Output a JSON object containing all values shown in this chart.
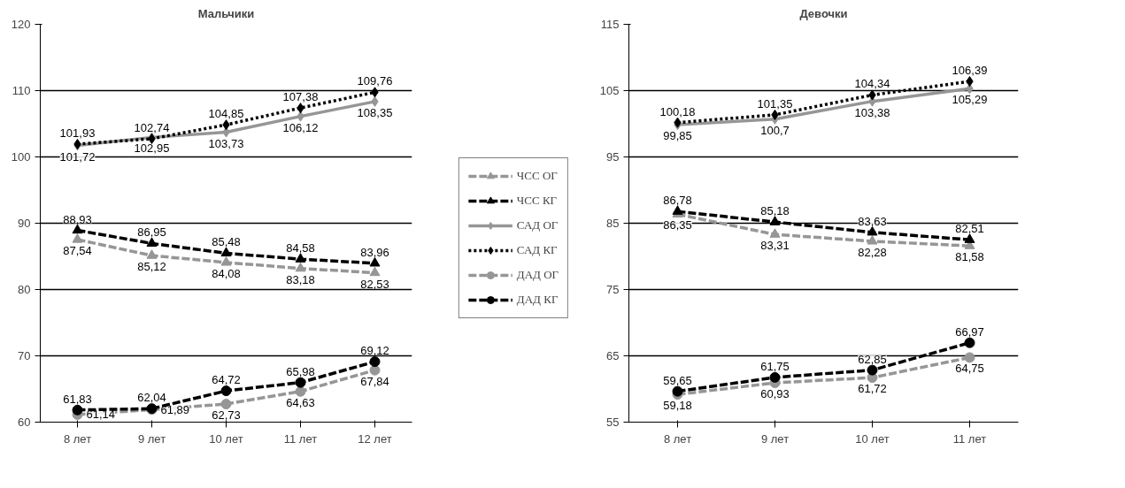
{
  "chart_data": [
    {
      "type": "line",
      "title": "Мальчики",
      "categories": [
        "8 лет",
        "9 лет",
        "10 лет",
        "11 лет",
        "12 лет"
      ],
      "ylim": [
        60,
        120
      ],
      "yticks": [
        60,
        70,
        80,
        90,
        100,
        110,
        120
      ],
      "grid": "y",
      "legend": "right",
      "series": [
        {
          "name": "ЧСС ОГ",
          "color": "#969696",
          "marker": "triangle",
          "line_style": "dashed",
          "values": [
            87.54,
            85.12,
            84.08,
            83.18,
            82.53
          ],
          "value_labels": [
            "87,54",
            "85,12",
            "84,08",
            "83,18",
            "82,53"
          ]
        },
        {
          "name": "ЧСС КГ",
          "color": "#000000",
          "marker": "triangle",
          "line_style": "dashed",
          "values": [
            88.93,
            86.95,
            85.48,
            84.58,
            83.96
          ],
          "value_labels": [
            "88,93",
            "86,95",
            "85,48",
            "84,58",
            "83,96"
          ]
        },
        {
          "name": "САД ОГ",
          "color": "#969696",
          "marker": "diamond",
          "line_style": "solid",
          "values": [
            101.72,
            102.95,
            103.73,
            106.12,
            108.35
          ],
          "value_labels": [
            "101,72",
            "102,95",
            "103,73",
            "106,12",
            "108,35"
          ]
        },
        {
          "name": "САД КГ",
          "color": "#000000",
          "marker": "diamond",
          "line_style": "dotted",
          "values": [
            101.93,
            102.74,
            104.85,
            107.38,
            109.76
          ],
          "value_labels": [
            "101,93",
            "102,74",
            "104,85",
            "107,38",
            "109,76"
          ]
        },
        {
          "name": "ДАД ОГ",
          "color": "#969696",
          "marker": "circle",
          "line_style": "dashed",
          "values": [
            61.14,
            61.89,
            62.73,
            64.63,
            67.84
          ],
          "value_labels": [
            "61,14",
            "61,89",
            "62,73",
            "64,63",
            "67,84"
          ]
        },
        {
          "name": "ДАД КГ",
          "color": "#000000",
          "marker": "circle",
          "line_style": "dashed",
          "values": [
            61.83,
            62.04,
            64.72,
            65.98,
            69.12
          ],
          "value_labels": [
            "61,83",
            "62,04",
            "64,72",
            "65,98",
            "69,12"
          ]
        }
      ]
    },
    {
      "type": "line",
      "title": "Девочки",
      "categories": [
        "8 лет",
        "9 лет",
        "10 лет",
        "11 лет"
      ],
      "ylim": [
        55,
        115
      ],
      "yticks": [
        55,
        65,
        75,
        85,
        95,
        105,
        115
      ],
      "grid": "y",
      "series": [
        {
          "color": "#969696",
          "marker": "triangle",
          "line_style": "dashed",
          "values": [
            86.35,
            83.31,
            82.28,
            81.58
          ],
          "value_labels": [
            "86,35",
            "83,31",
            "82,28",
            "81,58"
          ]
        },
        {
          "color": "#000000",
          "marker": "triangle",
          "line_style": "dashed",
          "values": [
            86.78,
            85.18,
            83.63,
            82.51
          ],
          "value_labels": [
            "86,78",
            "85,18",
            "83,63",
            "82,51"
          ]
        },
        {
          "color": "#969696",
          "marker": "diamond",
          "line_style": "solid",
          "values": [
            99.85,
            100.7,
            103.38,
            105.29
          ],
          "value_labels": [
            "99,85",
            "100,7",
            "103,38",
            "105,29"
          ]
        },
        {
          "color": "#000000",
          "marker": "diamond",
          "line_style": "dotted",
          "values": [
            100.18,
            101.35,
            104.34,
            106.39
          ],
          "value_labels": [
            "100,18",
            "101,35",
            "104,34",
            "106,39"
          ]
        },
        {
          "color": "#969696",
          "marker": "circle",
          "line_style": "dashed",
          "values": [
            59.18,
            60.93,
            61.72,
            64.75
          ],
          "value_labels": [
            "59,18",
            "60,93",
            "61,72",
            "64,75"
          ]
        },
        {
          "color": "#000000",
          "marker": "circle",
          "line_style": "dashed",
          "values": [
            59.65,
            61.75,
            62.85,
            66.97
          ],
          "value_labels": [
            "59,65",
            "61,75",
            "62,85",
            "66,97"
          ]
        }
      ]
    }
  ]
}
